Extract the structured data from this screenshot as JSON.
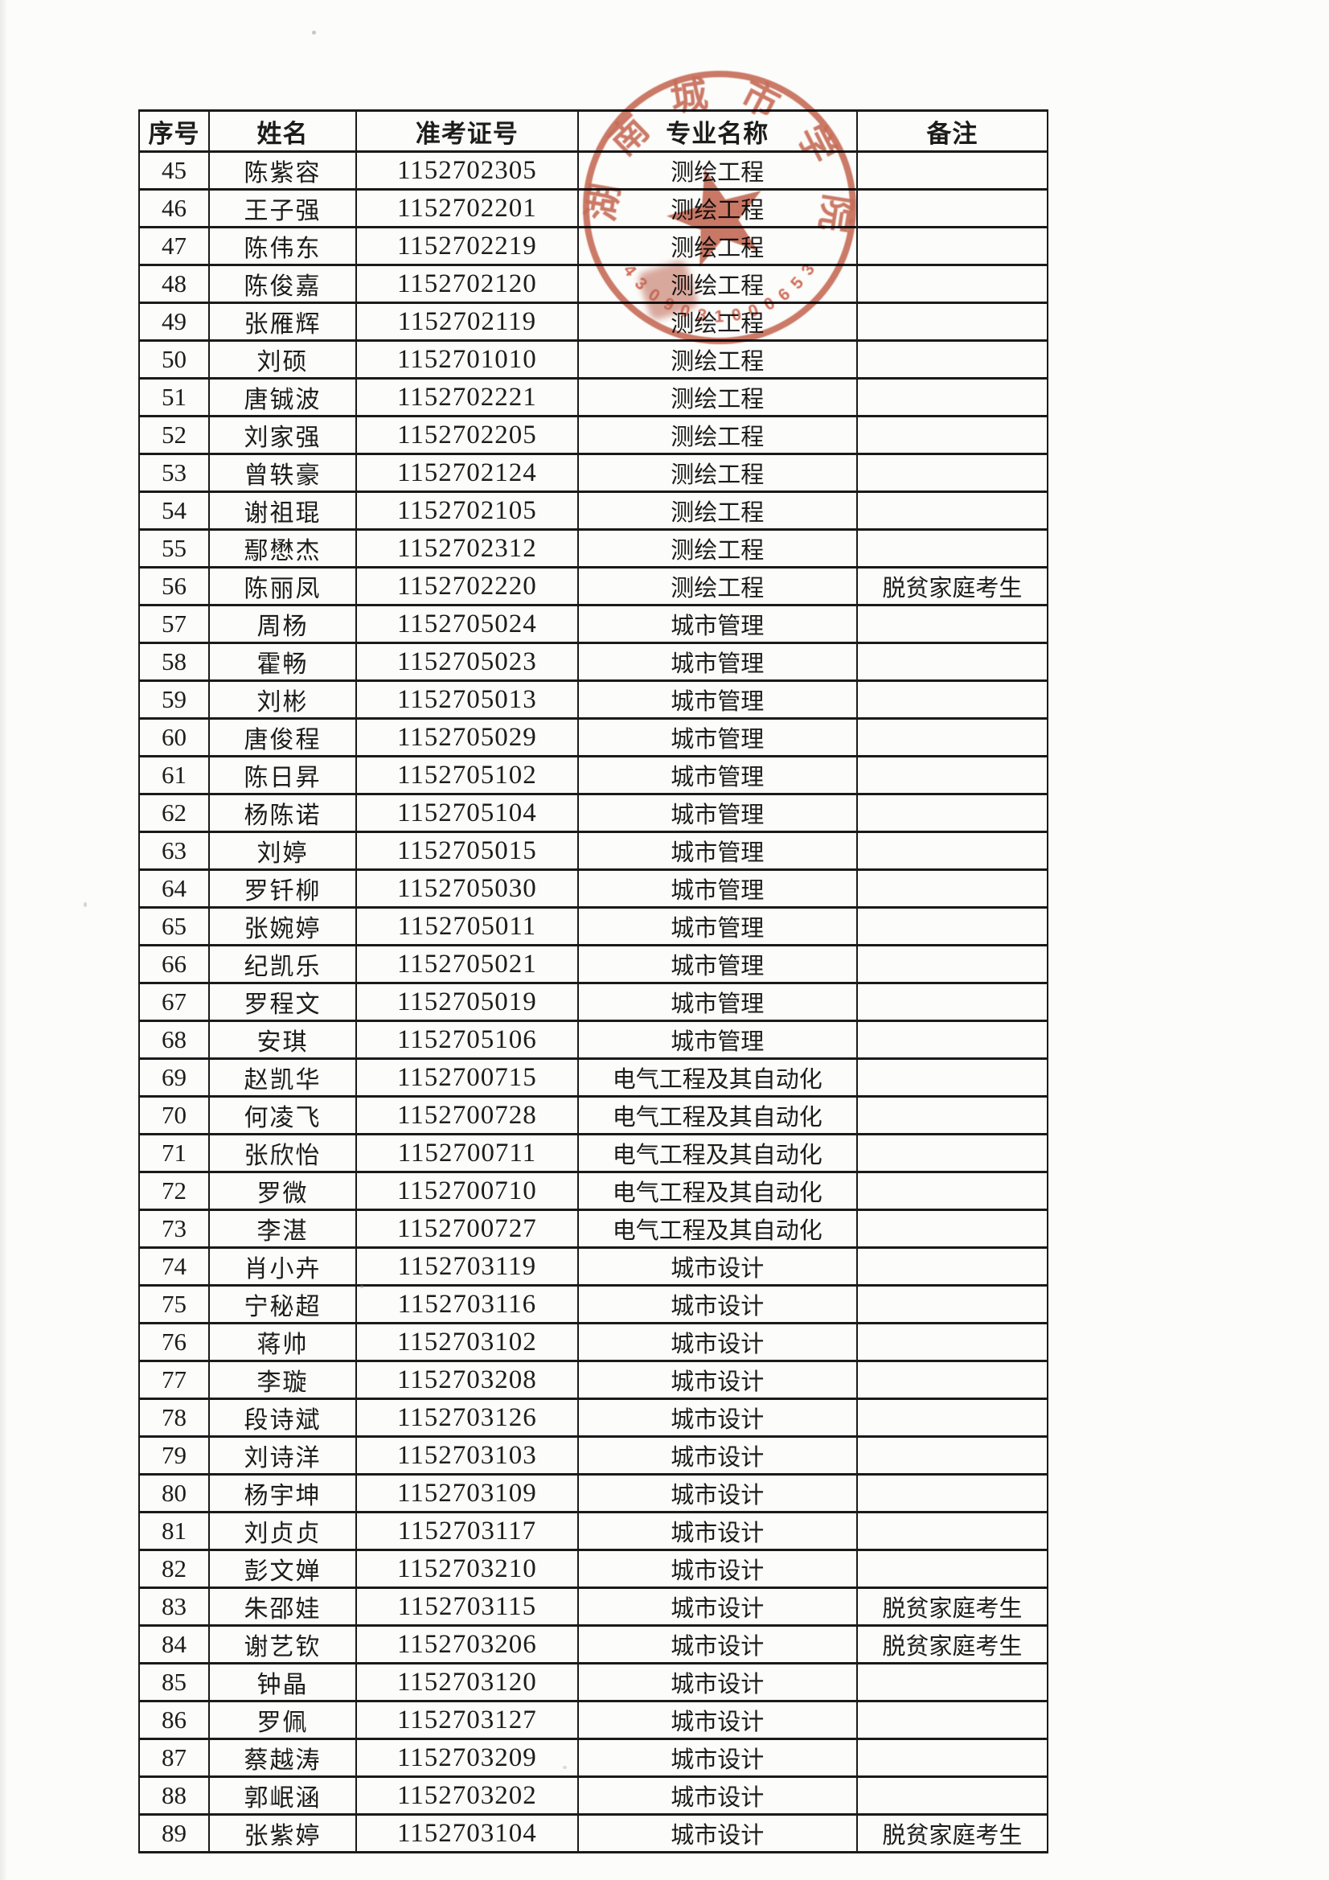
{
  "table": {
    "headers": [
      "序号",
      "姓名",
      "准考证号",
      "专业名称",
      "备注"
    ],
    "rows": [
      {
        "no": "45",
        "name": "陈紫容",
        "id": "1152702305",
        "major": "测绘工程",
        "remark": ""
      },
      {
        "no": "46",
        "name": "王子强",
        "id": "1152702201",
        "major": "测绘工程",
        "remark": ""
      },
      {
        "no": "47",
        "name": "陈伟东",
        "id": "1152702219",
        "major": "测绘工程",
        "remark": ""
      },
      {
        "no": "48",
        "name": "陈俊嘉",
        "id": "1152702120",
        "major": "测绘工程",
        "remark": ""
      },
      {
        "no": "49",
        "name": "张雁辉",
        "id": "1152702119",
        "major": "测绘工程",
        "remark": ""
      },
      {
        "no": "50",
        "name": "刘硕",
        "id": "1152701010",
        "major": "测绘工程",
        "remark": ""
      },
      {
        "no": "51",
        "name": "唐铖波",
        "id": "1152702221",
        "major": "测绘工程",
        "remark": ""
      },
      {
        "no": "52",
        "name": "刘家强",
        "id": "1152702205",
        "major": "测绘工程",
        "remark": ""
      },
      {
        "no": "53",
        "name": "曾轶豪",
        "id": "1152702124",
        "major": "测绘工程",
        "remark": ""
      },
      {
        "no": "54",
        "name": "谢祖琨",
        "id": "1152702105",
        "major": "测绘工程",
        "remark": ""
      },
      {
        "no": "55",
        "name": "鄢懋杰",
        "id": "1152702312",
        "major": "测绘工程",
        "remark": ""
      },
      {
        "no": "56",
        "name": "陈丽凤",
        "id": "1152702220",
        "major": "测绘工程",
        "remark": "脱贫家庭考生"
      },
      {
        "no": "57",
        "name": "周杨",
        "id": "1152705024",
        "major": "城市管理",
        "remark": ""
      },
      {
        "no": "58",
        "name": "霍畅",
        "id": "1152705023",
        "major": "城市管理",
        "remark": ""
      },
      {
        "no": "59",
        "name": "刘彬",
        "id": "1152705013",
        "major": "城市管理",
        "remark": ""
      },
      {
        "no": "60",
        "name": "唐俊程",
        "id": "1152705029",
        "major": "城市管理",
        "remark": ""
      },
      {
        "no": "61",
        "name": "陈日昇",
        "id": "1152705102",
        "major": "城市管理",
        "remark": ""
      },
      {
        "no": "62",
        "name": "杨陈诺",
        "id": "1152705104",
        "major": "城市管理",
        "remark": ""
      },
      {
        "no": "63",
        "name": "刘婷",
        "id": "1152705015",
        "major": "城市管理",
        "remark": ""
      },
      {
        "no": "64",
        "name": "罗钎柳",
        "id": "1152705030",
        "major": "城市管理",
        "remark": ""
      },
      {
        "no": "65",
        "name": "张婉婷",
        "id": "1152705011",
        "major": "城市管理",
        "remark": ""
      },
      {
        "no": "66",
        "name": "纪凯乐",
        "id": "1152705021",
        "major": "城市管理",
        "remark": ""
      },
      {
        "no": "67",
        "name": "罗程文",
        "id": "1152705019",
        "major": "城市管理",
        "remark": ""
      },
      {
        "no": "68",
        "name": "安琪",
        "id": "1152705106",
        "major": "城市管理",
        "remark": ""
      },
      {
        "no": "69",
        "name": "赵凯华",
        "id": "1152700715",
        "major": "电气工程及其自动化",
        "remark": ""
      },
      {
        "no": "70",
        "name": "何凌飞",
        "id": "1152700728",
        "major": "电气工程及其自动化",
        "remark": ""
      },
      {
        "no": "71",
        "name": "张欣怡",
        "id": "1152700711",
        "major": "电气工程及其自动化",
        "remark": ""
      },
      {
        "no": "72",
        "name": "罗微",
        "id": "1152700710",
        "major": "电气工程及其自动化",
        "remark": ""
      },
      {
        "no": "73",
        "name": "李湛",
        "id": "1152700727",
        "major": "电气工程及其自动化",
        "remark": ""
      },
      {
        "no": "74",
        "name": "肖小卉",
        "id": "1152703119",
        "major": "城市设计",
        "remark": ""
      },
      {
        "no": "75",
        "name": "宁秘超",
        "id": "1152703116",
        "major": "城市设计",
        "remark": ""
      },
      {
        "no": "76",
        "name": "蒋帅",
        "id": "1152703102",
        "major": "城市设计",
        "remark": ""
      },
      {
        "no": "77",
        "name": "李璇",
        "id": "1152703208",
        "major": "城市设计",
        "remark": ""
      },
      {
        "no": "78",
        "name": "段诗斌",
        "id": "1152703126",
        "major": "城市设计",
        "remark": ""
      },
      {
        "no": "79",
        "name": "刘诗洋",
        "id": "1152703103",
        "major": "城市设计",
        "remark": ""
      },
      {
        "no": "80",
        "name": "杨宇坤",
        "id": "1152703109",
        "major": "城市设计",
        "remark": ""
      },
      {
        "no": "81",
        "name": "刘贞贞",
        "id": "1152703117",
        "major": "城市设计",
        "remark": ""
      },
      {
        "no": "82",
        "name": "彭文婵",
        "id": "1152703210",
        "major": "城市设计",
        "remark": ""
      },
      {
        "no": "83",
        "name": "朱邵娃",
        "id": "1152703115",
        "major": "城市设计",
        "remark": "脱贫家庭考生"
      },
      {
        "no": "84",
        "name": "谢艺钦",
        "id": "1152703206",
        "major": "城市设计",
        "remark": "脱贫家庭考生"
      },
      {
        "no": "85",
        "name": "钟晶",
        "id": "1152703120",
        "major": "城市设计",
        "remark": ""
      },
      {
        "no": "86",
        "name": "罗佩",
        "id": "1152703127",
        "major": "城市设计",
        "remark": ""
      },
      {
        "no": "87",
        "name": "蔡越涛",
        "id": "1152703209",
        "major": "城市设计",
        "remark": ""
      },
      {
        "no": "88",
        "name": "郭岷涵",
        "id": "1152703202",
        "major": "城市设计",
        "remark": ""
      },
      {
        "no": "89",
        "name": "张紫婷",
        "id": "1152703104",
        "major": "城市设计",
        "remark": "脱贫家庭考生"
      }
    ]
  },
  "stamp": {
    "arc_text": "湖南城市学院",
    "serial": "43090310006535",
    "color": "#c25b44"
  }
}
